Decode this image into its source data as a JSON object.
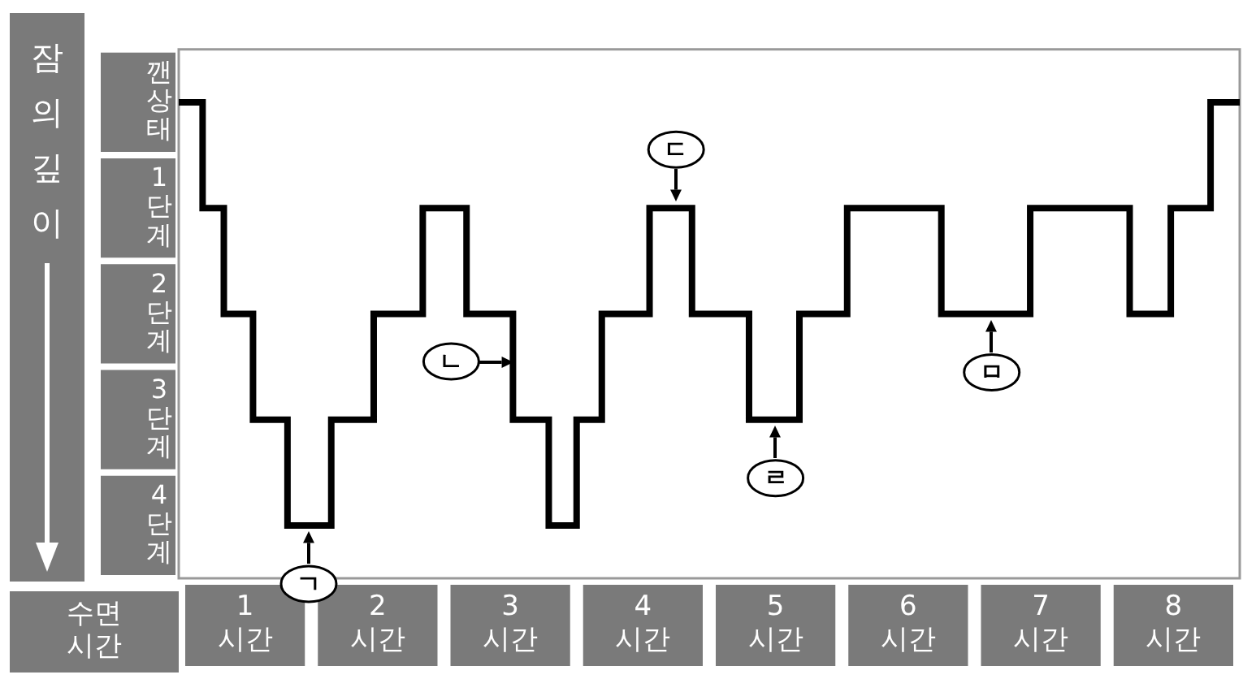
{
  "chart_data": {
    "type": "step",
    "ylabel": "잠의 깊이",
    "xlabel": "수면 시간",
    "x": [
      0,
      0.18,
      0.34,
      0.56,
      0.82,
      1.15,
      1.47,
      1.84,
      2.17,
      2.52,
      2.79,
      3.0,
      3.19,
      3.55,
      3.87,
      4.3,
      4.68,
      5.04,
      5.75,
      6.42,
      7.17,
      7.48,
      7.78,
      8
    ],
    "values": [
      0,
      1,
      2,
      3,
      4,
      3,
      2,
      1,
      2,
      3,
      4,
      3,
      2,
      1,
      2,
      3,
      2,
      1,
      2,
      1,
      2,
      1,
      0,
      0
    ],
    "color": "#000000",
    "marker": "none",
    "grid": false,
    "legend": false,
    "xlim": [
      0,
      8
    ],
    "ylim": [
      4.5,
      -0.5
    ],
    "xticks": [
      {
        "value": 0.5,
        "label": "1 시간"
      },
      {
        "value": 1.5,
        "label": "2 시간"
      },
      {
        "value": 2.5,
        "label": "3 시간"
      },
      {
        "value": 3.5,
        "label": "4 시간"
      },
      {
        "value": 4.5,
        "label": "5 시간"
      },
      {
        "value": 5.5,
        "label": "6 시간"
      },
      {
        "value": 6.5,
        "label": "7 시간"
      },
      {
        "value": 7.5,
        "label": "8 시간"
      }
    ],
    "yticks": [
      {
        "value": 0,
        "label": "깬상태"
      },
      {
        "value": 1,
        "label": "1단계"
      },
      {
        "value": 2,
        "label": "2단계"
      },
      {
        "value": 3,
        "label": "3단계"
      },
      {
        "value": 4,
        "label": "4단계"
      }
    ],
    "annotations": [
      {
        "text": "ㄱ",
        "x": 0.98,
        "y": 4
      },
      {
        "text": "ㄴ",
        "x": 2.52,
        "y": 2.45
      },
      {
        "text": "ㄷ",
        "x": 3.75,
        "y": 1
      },
      {
        "text": "ㄹ",
        "x": 4.5,
        "y": 3
      },
      {
        "text": "ㅁ",
        "x": 6.13,
        "y": 2
      }
    ]
  }
}
